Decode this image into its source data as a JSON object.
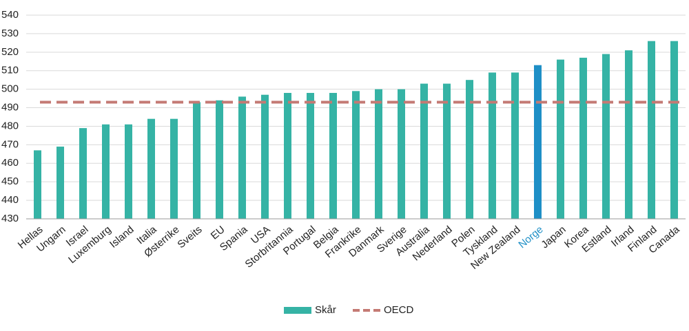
{
  "chart_data": {
    "type": "bar",
    "categories": [
      "Hellas",
      "Ungarn",
      "Israel",
      "Luxemburg",
      "Island",
      "Italia",
      "Østerrike",
      "Sveits",
      "EU",
      "Spania",
      "USA",
      "Storbritannia",
      "Portugal",
      "Belgia",
      "Frankrike",
      "Danmark",
      "Sverige",
      "Australia",
      "Nederland",
      "Polen",
      "Tyskland",
      "New Zealand",
      "Norge",
      "Japan",
      "Korea",
      "Estland",
      "Irland",
      "Finland",
      "Canada"
    ],
    "series": [
      {
        "name": "Skår",
        "color": "#35b3a5",
        "values": [
          467,
          469,
          479,
          481,
          481,
          484,
          484,
          493,
          494,
          496,
          497,
          498,
          498,
          498,
          499,
          500,
          500,
          503,
          503,
          505,
          509,
          509,
          513,
          516,
          517,
          519,
          521,
          526,
          526
        ],
        "colors": [
          "#35b3a5",
          "#35b3a5",
          "#35b3a5",
          "#35b3a5",
          "#35b3a5",
          "#35b3a5",
          "#35b3a5",
          "#35b3a5",
          "#35b3a5",
          "#35b3a5",
          "#35b3a5",
          "#35b3a5",
          "#35b3a5",
          "#35b3a5",
          "#35b3a5",
          "#35b3a5",
          "#35b3a5",
          "#35b3a5",
          "#35b3a5",
          "#35b3a5",
          "#35b3a5",
          "#35b3a5",
          "#1e8fc6",
          "#35b3a5",
          "#35b3a5",
          "#35b3a5",
          "#35b3a5",
          "#35b3a5",
          "#35b3a5"
        ]
      }
    ],
    "reference_lines": [
      {
        "name": "OECD",
        "value": 493,
        "color": "#c47a74",
        "dashed": true
      }
    ],
    "ylim": [
      430,
      540
    ],
    "yticks": [
      430,
      440,
      450,
      460,
      470,
      480,
      490,
      500,
      510,
      520,
      530,
      540
    ],
    "grid": true,
    "legend": "bottom"
  }
}
